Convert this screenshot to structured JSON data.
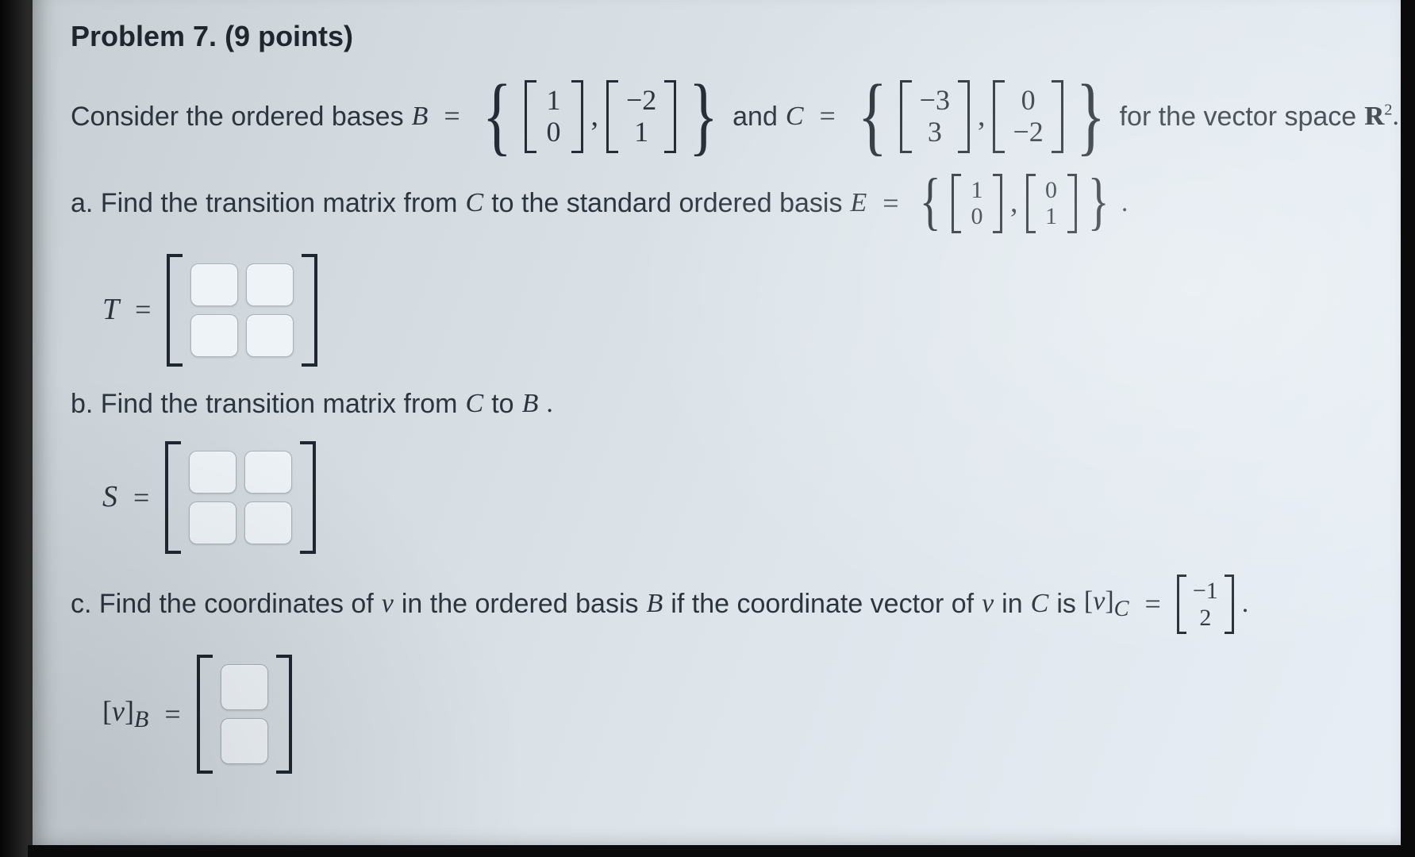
{
  "title": "Problem 7. (9 points)",
  "intro_prefix": "Consider the ordered bases",
  "intro_and": "and",
  "intro_suffix": "for the vector space",
  "space_symbol": "R",
  "space_exponent": "2",
  "basis_B": {
    "label": "B",
    "v1": [
      "1",
      "0"
    ],
    "v2": [
      "−2",
      "1"
    ]
  },
  "basis_C": {
    "label": "C",
    "v1": [
      "−3",
      "3"
    ],
    "v2": [
      "0",
      "−2"
    ]
  },
  "part_a": {
    "text_prefix": "a. Find the transition matrix from",
    "from": "C",
    "text_mid": "to the standard ordered basis",
    "to": "E",
    "E_v1": [
      "1",
      "0"
    ],
    "E_v2": [
      "0",
      "1"
    ],
    "answer_label": "T"
  },
  "part_b": {
    "text_prefix": "b. Find the transition matrix from",
    "from": "C",
    "text_mid": "to",
    "to": "B",
    "answer_label": "S"
  },
  "part_c": {
    "text_prefix": "c. Find the coordinates of",
    "vector": "v",
    "text_mid1": "in the ordered basis",
    "basis1": "B",
    "text_mid2": "if the coordinate vector of",
    "text_mid3": "in",
    "basis2": "C",
    "text_mid4": "is",
    "coord_label_left": "[v]",
    "coord_sub_C": "C",
    "coord_vec": [
      "−1",
      "2"
    ],
    "answer_label_left": "[v]",
    "answer_sub_B": "B"
  },
  "colors": {
    "text": "#2e3640",
    "bracket": "#252c35",
    "box_bg": "#eef3f8",
    "box_border": "#aab2ba",
    "page_bg_start": "#c7cfd4",
    "page_bg_end": "#e7eef5"
  },
  "fontsizes": {
    "title": 36,
    "body": 34,
    "vector_entry": 36,
    "brace": 110
  }
}
